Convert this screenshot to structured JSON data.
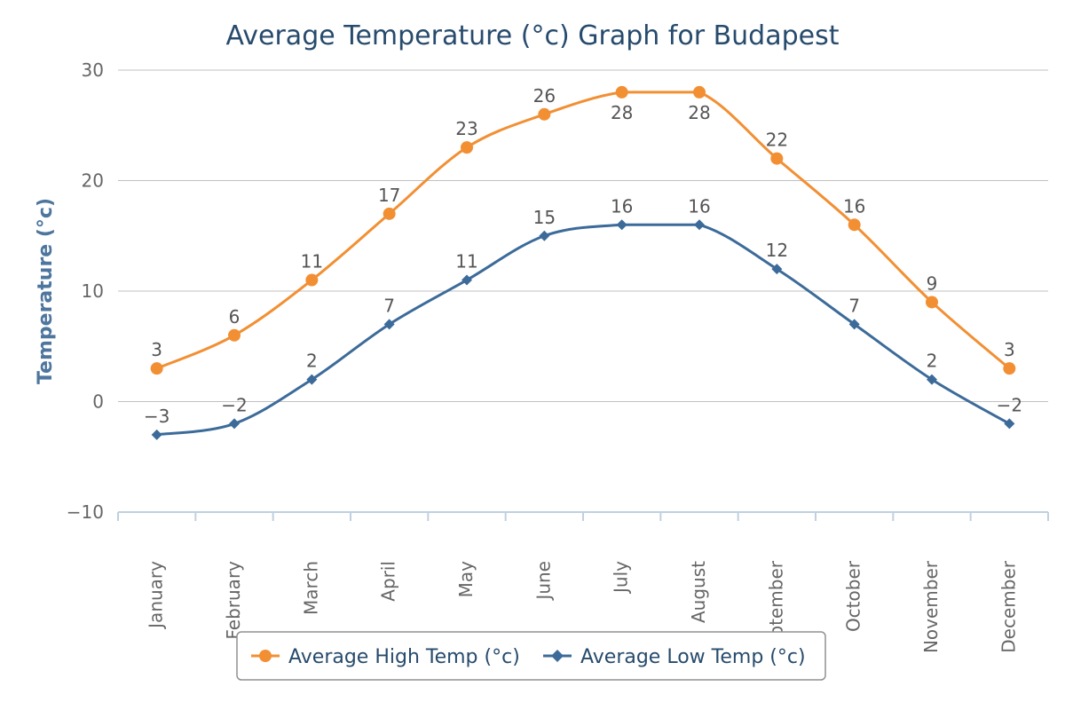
{
  "chart_data": {
    "type": "line",
    "title": "Average Temperature (°c) Graph for Budapest",
    "xlabel": "",
    "ylabel": "Temperature (°c)",
    "ylim": [
      -10,
      30
    ],
    "yticks": [
      -10,
      0,
      10,
      20,
      30
    ],
    "grid": true,
    "legend_position": "bottom",
    "categories": [
      "January",
      "February",
      "March",
      "April",
      "May",
      "June",
      "July",
      "August",
      "September",
      "October",
      "November",
      "December"
    ],
    "series": [
      {
        "name": "Average High Temp (°c)",
        "color": "#f28f33",
        "marker": "circle",
        "values": [
          3,
          6,
          11,
          17,
          23,
          26,
          28,
          28,
          22,
          16,
          9,
          3
        ],
        "labels": [
          "3",
          "6",
          "11",
          "17",
          "23",
          "26",
          "28",
          "28",
          "22",
          "16",
          "9",
          "3"
        ]
      },
      {
        "name": "Average Low Temp (°c)",
        "color": "#3c6b9a",
        "marker": "diamond",
        "values": [
          -3,
          -2,
          2,
          7,
          11,
          15,
          16,
          16,
          12,
          7,
          2,
          -2
        ],
        "labels": [
          "−3",
          "−2",
          "2",
          "7",
          "11",
          "15",
          "16",
          "16",
          "12",
          "7",
          "2",
          "−2"
        ]
      }
    ]
  }
}
